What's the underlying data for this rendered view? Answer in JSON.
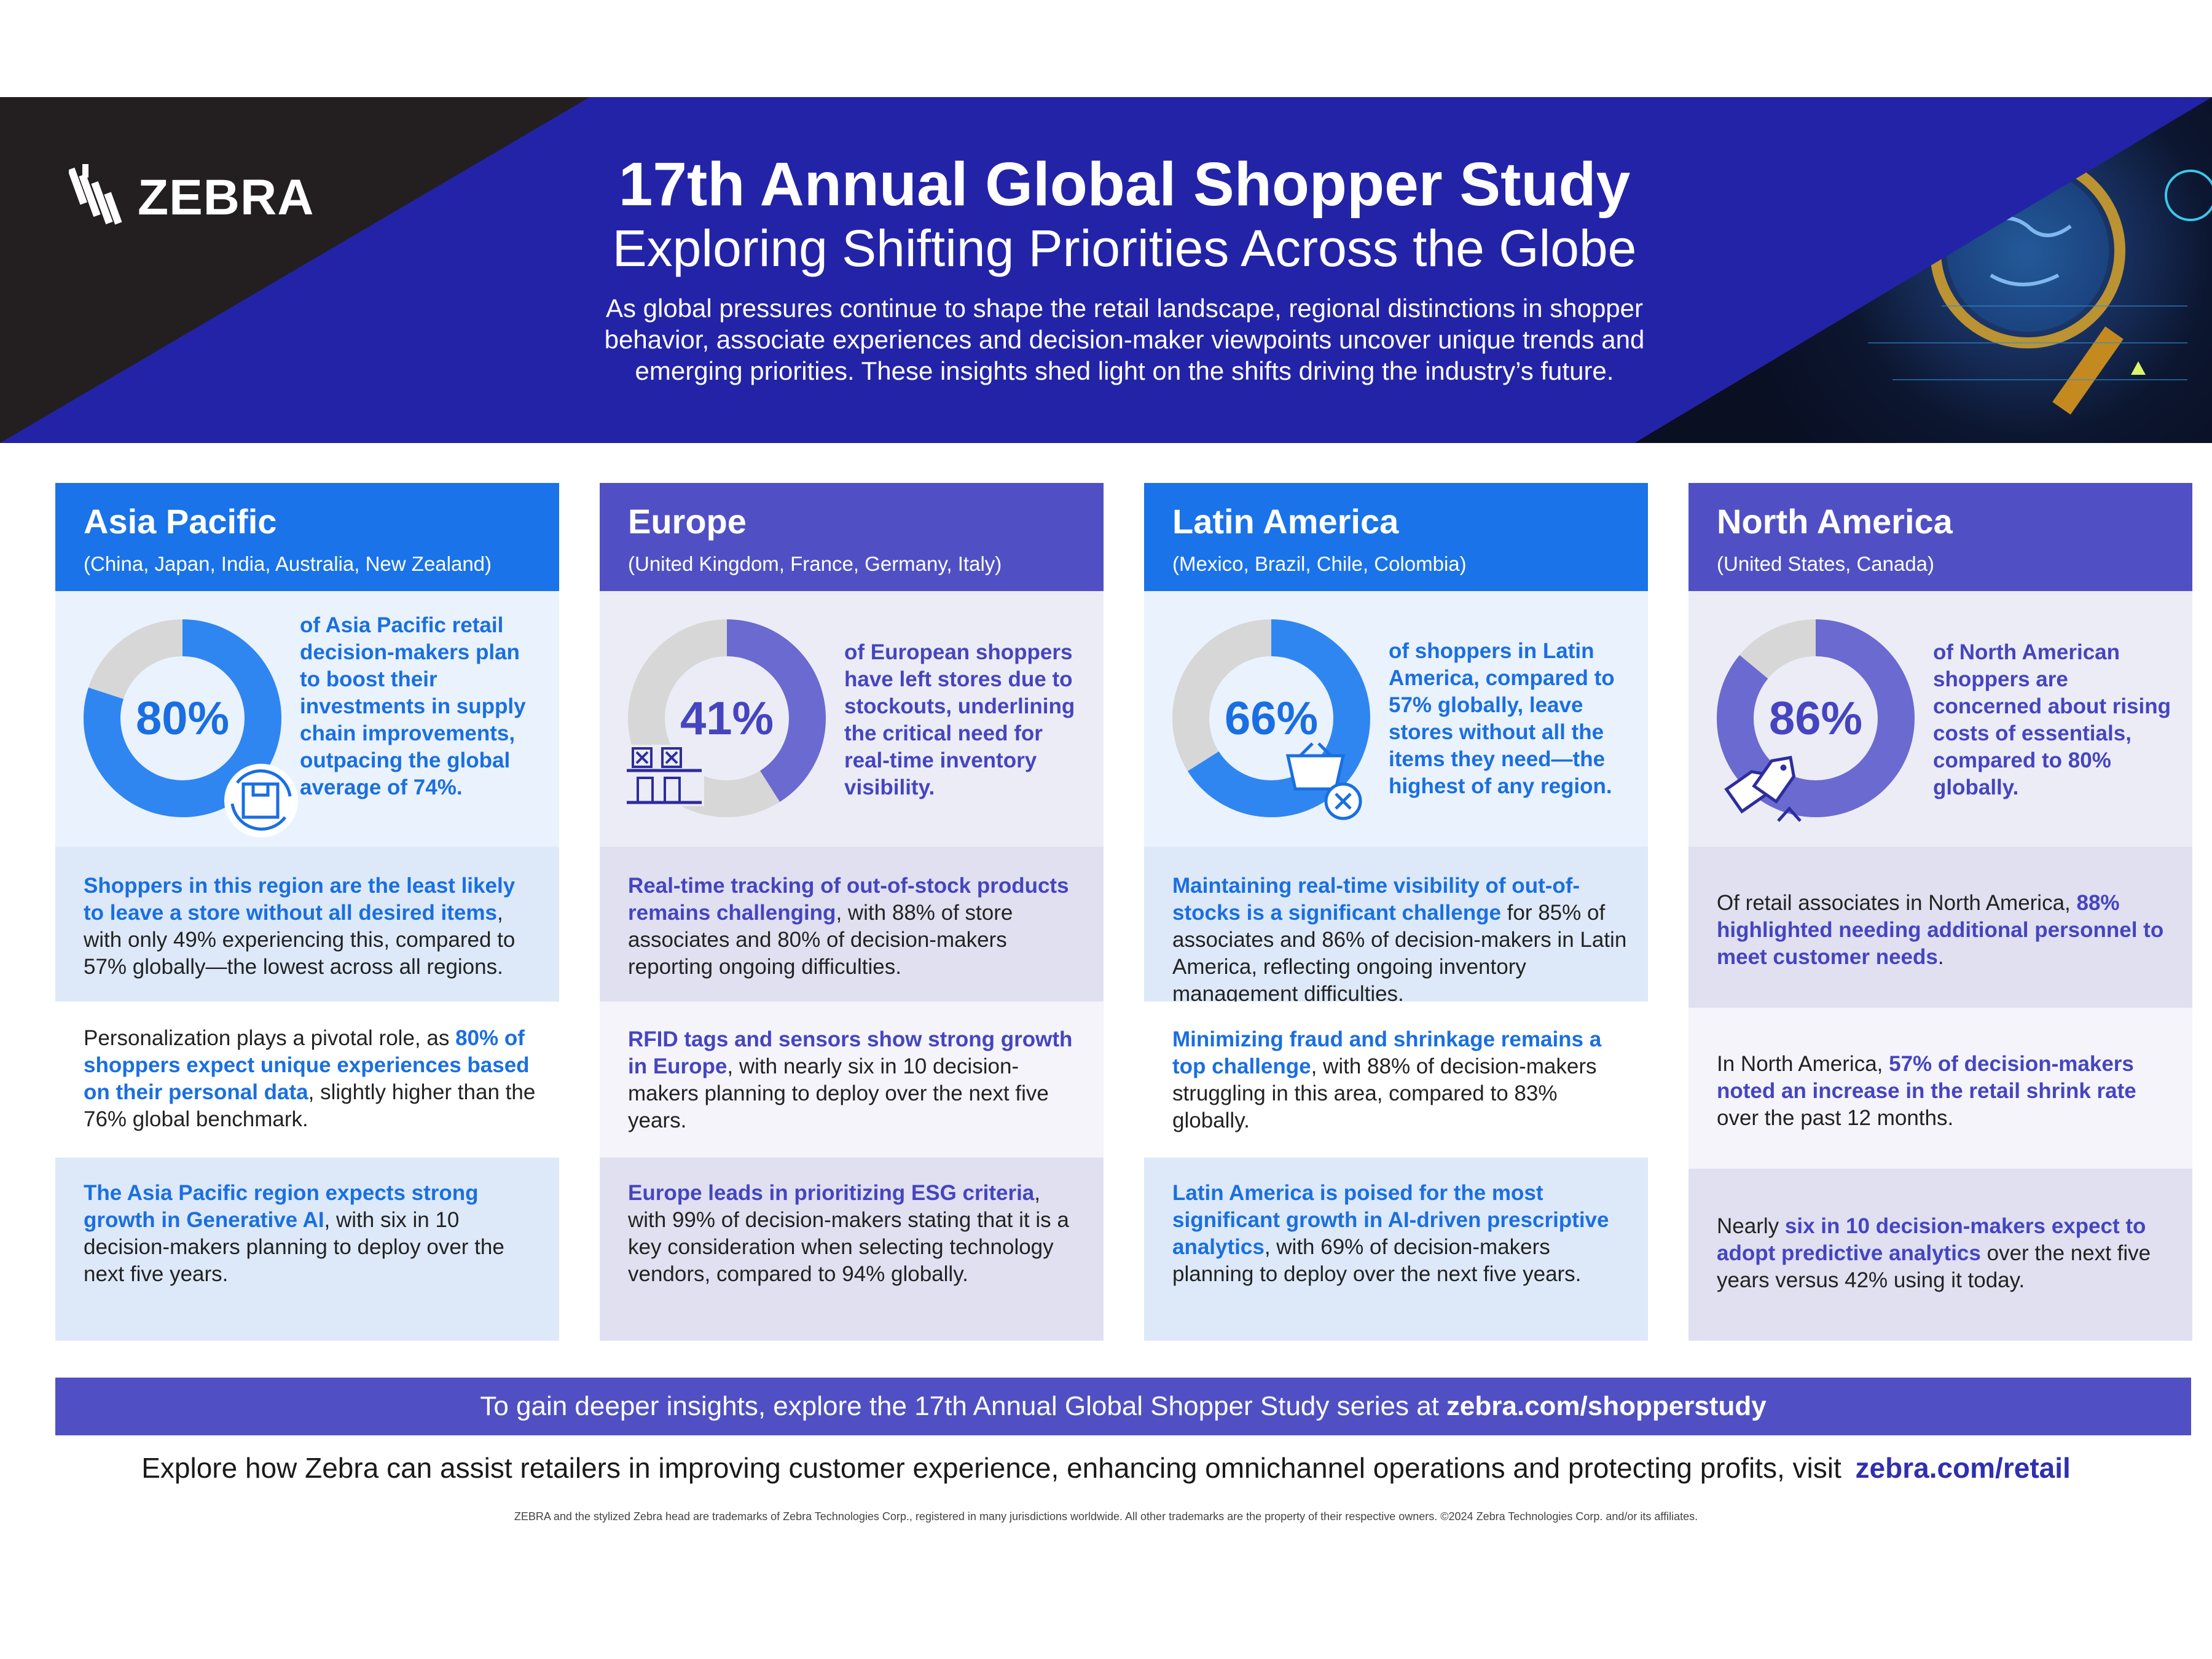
{
  "header": {
    "logo_text": "ZEBRA",
    "title": "17th Annual Global Shopper Study",
    "subtitle": "Exploring Shifting Priorities Across the Globe",
    "intro": "As global pressures continue to shape the retail landscape, regional distinctions in shopper behavior, associate experiences and decision-maker viewpoints uncover unique trends and emerging priorities. These insights shed light on the shifts driving the industry’s future."
  },
  "colors": {
    "blue_accent": "#1a73e8",
    "purple_accent": "#5050c4",
    "header_bg": "#2323a8",
    "donut_track": "#d7d7d7"
  },
  "regions": [
    {
      "name": "Asia Pacific",
      "countries": "(China, Japan, India, Australia, New Zealand)",
      "stat": {
        "value": "80%",
        "percent": 80,
        "icon": "supply-chain-box-icon",
        "text": "of Asia Pacific retail decision-makers plan to boost their investments in supply chain improvements, outpacing the global average of 74%."
      },
      "facts": [
        {
          "highlight": "Shoppers in this region are the least likely to leave a store without all desired items",
          "rest": ", with only 49% experiencing this, compared to 57% globally—the lowest across all regions."
        },
        {
          "lead": "Personalization plays a pivotal role, as ",
          "highlight": "80% of shoppers expect unique experiences based on their personal data",
          "rest": ", slightly higher than the 76% global benchmark."
        },
        {
          "highlight": "The Asia Pacific region expects strong growth in Generative AI",
          "rest": ", with six in 10 decision-makers planning to deploy over the next five years."
        }
      ]
    },
    {
      "name": "Europe",
      "countries": "(United Kingdom, France, Germany, Italy)",
      "stat": {
        "value": "41%",
        "percent": 41,
        "icon": "empty-shelf-icon",
        "text": "of European shoppers have left stores due to stockouts, underlining the critical need for real-time inventory visibility."
      },
      "facts": [
        {
          "highlight": "Real-time tracking of out-of-stock products remains challenging",
          "rest": ", with 88% of store associates and 80% of decision-makers reporting ongoing difficulties."
        },
        {
          "highlight": "RFID tags and sensors show strong growth in Europe",
          "rest": ", with nearly six in 10 decision-makers planning to deploy over the next five years."
        },
        {
          "highlight": "Europe leads in prioritizing ESG criteria",
          "rest": ", with 99% of decision-makers stating that it is a key consideration when selecting technology vendors, compared to 94% globally."
        }
      ]
    },
    {
      "name": "Latin America",
      "countries": "(Mexico, Brazil, Chile, Colombia)",
      "stat": {
        "value": "66%",
        "percent": 66,
        "icon": "shopping-basket-x-icon",
        "text": "of shoppers in Latin America, compared to 57% globally, leave stores without all the items they need—the highest of any region."
      },
      "facts": [
        {
          "highlight": "Maintaining real-time visibility of out-of-stocks is a significant challenge",
          "rest": " for 85% of associates and 86% of decision-makers in Latin America, reflecting ongoing inventory management difficulties."
        },
        {
          "highlight": "Minimizing fraud and shrinkage remains a top challenge",
          "rest": ", with 88% of decision-makers struggling in this area, compared to 83% globally."
        },
        {
          "highlight": "Latin America is poised for the most significant growth in AI-driven prescriptive analytics",
          "rest": ", with 69% of decision-makers planning to deploy over the next five years."
        }
      ]
    },
    {
      "name": "North America",
      "countries": "(United States, Canada)",
      "stat": {
        "value": "86%",
        "percent": 86,
        "icon": "price-tags-icon",
        "text": "of North American shoppers are concerned about rising costs of essentials, compared to 80% globally."
      },
      "facts": [
        {
          "lead": "Of retail associates in North America, ",
          "highlight": "88% highlighted needing additional personnel to meet customer needs",
          "rest": "."
        },
        {
          "lead": "In North America, ",
          "highlight": "57% of decision-makers noted an increase in the retail shrink rate",
          "rest": " over the past 12 months."
        },
        {
          "lead": "Nearly ",
          "highlight": "six in 10 decision-makers expect to adopt predictive analytics",
          "rest": " over the next five years versus 42% using it today."
        }
      ]
    }
  ],
  "footer": {
    "cta_text": "To gain deeper insights, explore the 17th Annual Global Shopper Study series at",
    "cta_url": "zebra.com/shopperstudy",
    "retail_text": "Explore how Zebra can assist retailers in improving customer experience, enhancing omnichannel operations and protecting profits, visit",
    "retail_url": "zebra.com/retail",
    "legal": "ZEBRA and the stylized Zebra head are trademarks of Zebra Technologies Corp., registered in many jurisdictions worldwide. All other trademarks are the property of their respective owners. ©2024 Zebra Technologies Corp. and/or its affiliates."
  }
}
